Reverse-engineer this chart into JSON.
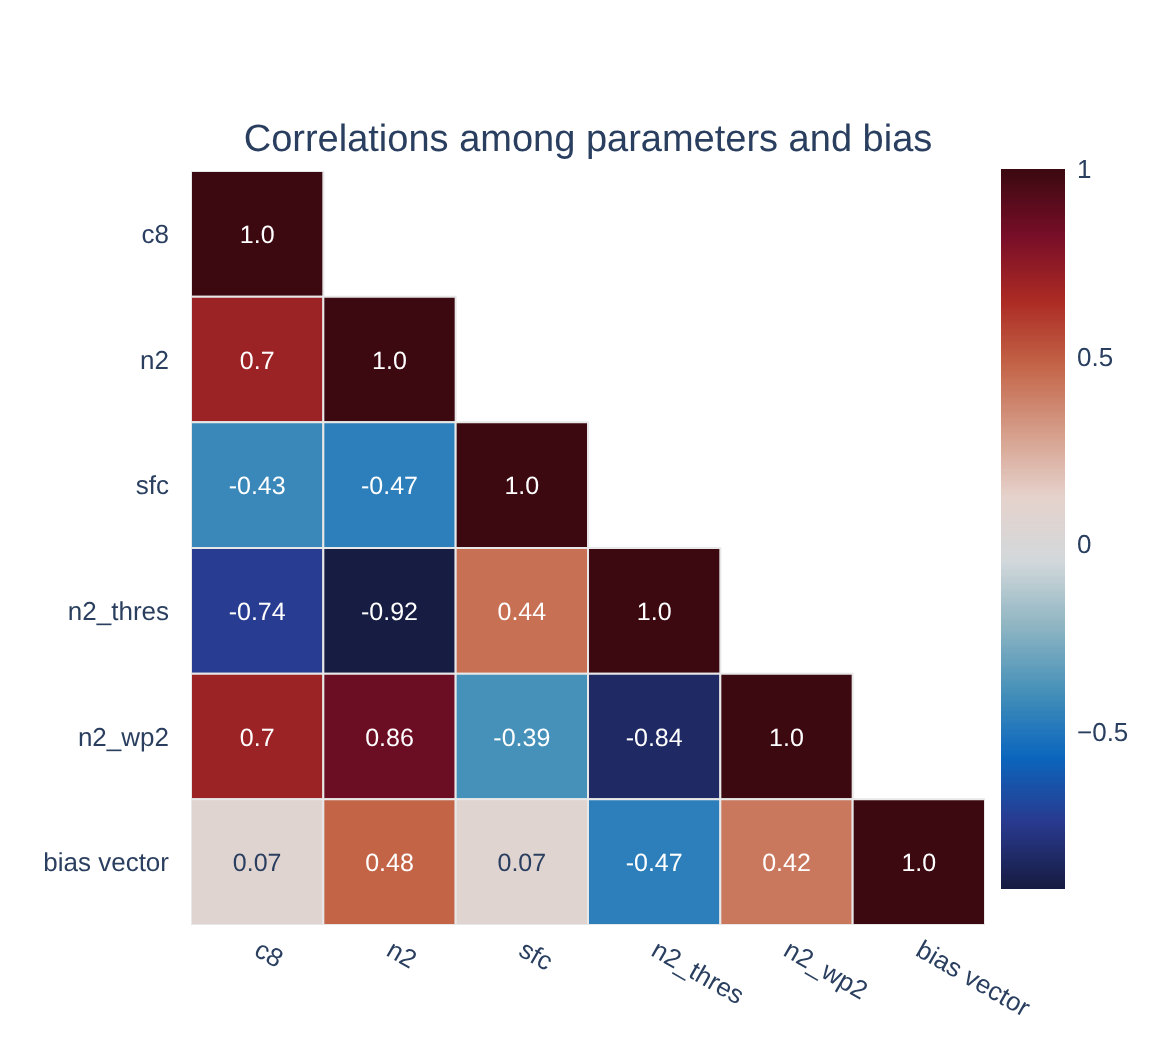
{
  "chart_data": {
    "type": "heatmap",
    "title": "Correlations among parameters and bias",
    "categories": [
      "c8",
      "n2",
      "sfc",
      "n2_thres",
      "n2_wp2",
      "bias vector"
    ],
    "y_categories": [
      "c8",
      "n2",
      "sfc",
      "n2_thres",
      "n2_wp2",
      "bias vector"
    ],
    "cells": [
      [
        1,
        null,
        null,
        null,
        null,
        null
      ],
      [
        0.7,
        1,
        null,
        null,
        null,
        null
      ],
      [
        -0.43,
        -0.47,
        1,
        null,
        null,
        null
      ],
      [
        -0.74,
        -0.92,
        0.44,
        1,
        null,
        null
      ],
      [
        0.7,
        0.86,
        -0.39,
        -0.84,
        1,
        null
      ],
      [
        0.07,
        0.48,
        0.07,
        -0.47,
        0.42,
        1
      ]
    ],
    "cell_labels": [
      [
        "1.0",
        null,
        null,
        null,
        null,
        null
      ],
      [
        "0.7",
        "1.0",
        null,
        null,
        null,
        null
      ],
      [
        "-0.43",
        "-0.47",
        "1.0",
        null,
        null,
        null
      ],
      [
        "-0.74",
        "-0.92",
        "0.44",
        "1.0",
        null,
        null
      ],
      [
        "0.7",
        "0.86",
        "-0.39",
        "-0.84",
        "1.0",
        null
      ],
      [
        "0.07",
        "0.48",
        "0.07",
        "-0.47",
        "0.42",
        "1.0"
      ]
    ],
    "clim": [
      -0.92,
      1
    ],
    "cticks": [
      {
        "value": -0.5,
        "label": "−0.5"
      },
      0,
      0.5,
      1
    ],
    "grid": false
  }
}
